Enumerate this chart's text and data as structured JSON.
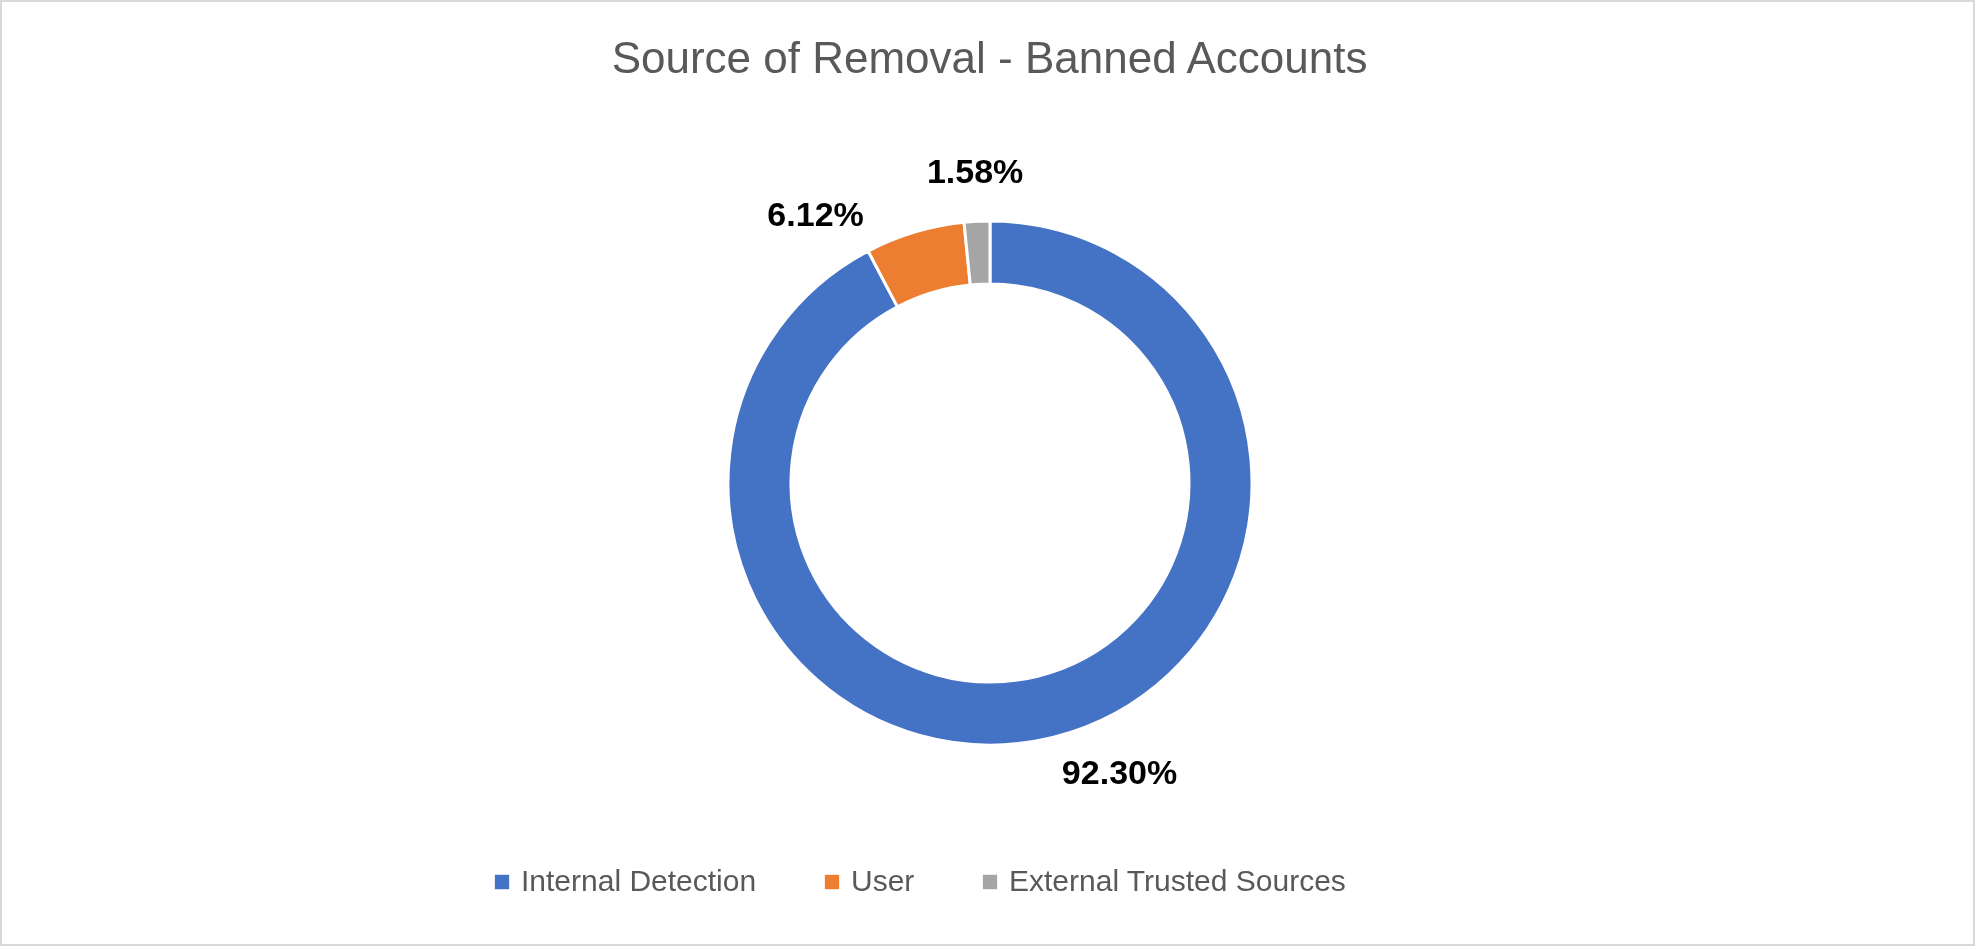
{
  "chart_data": {
    "type": "donut",
    "title": "Source of Removal - Banned Accounts",
    "categories": [
      "Internal Detection",
      "User",
      "External Trusted Sources"
    ],
    "values": [
      92.3,
      6.12,
      1.58
    ],
    "colors": [
      "#4472c4",
      "#ed7d31",
      "#a5a5a5"
    ],
    "value_labels": [
      "92.30%",
      "6.12%",
      "1.58%"
    ],
    "legend": "bottom"
  }
}
